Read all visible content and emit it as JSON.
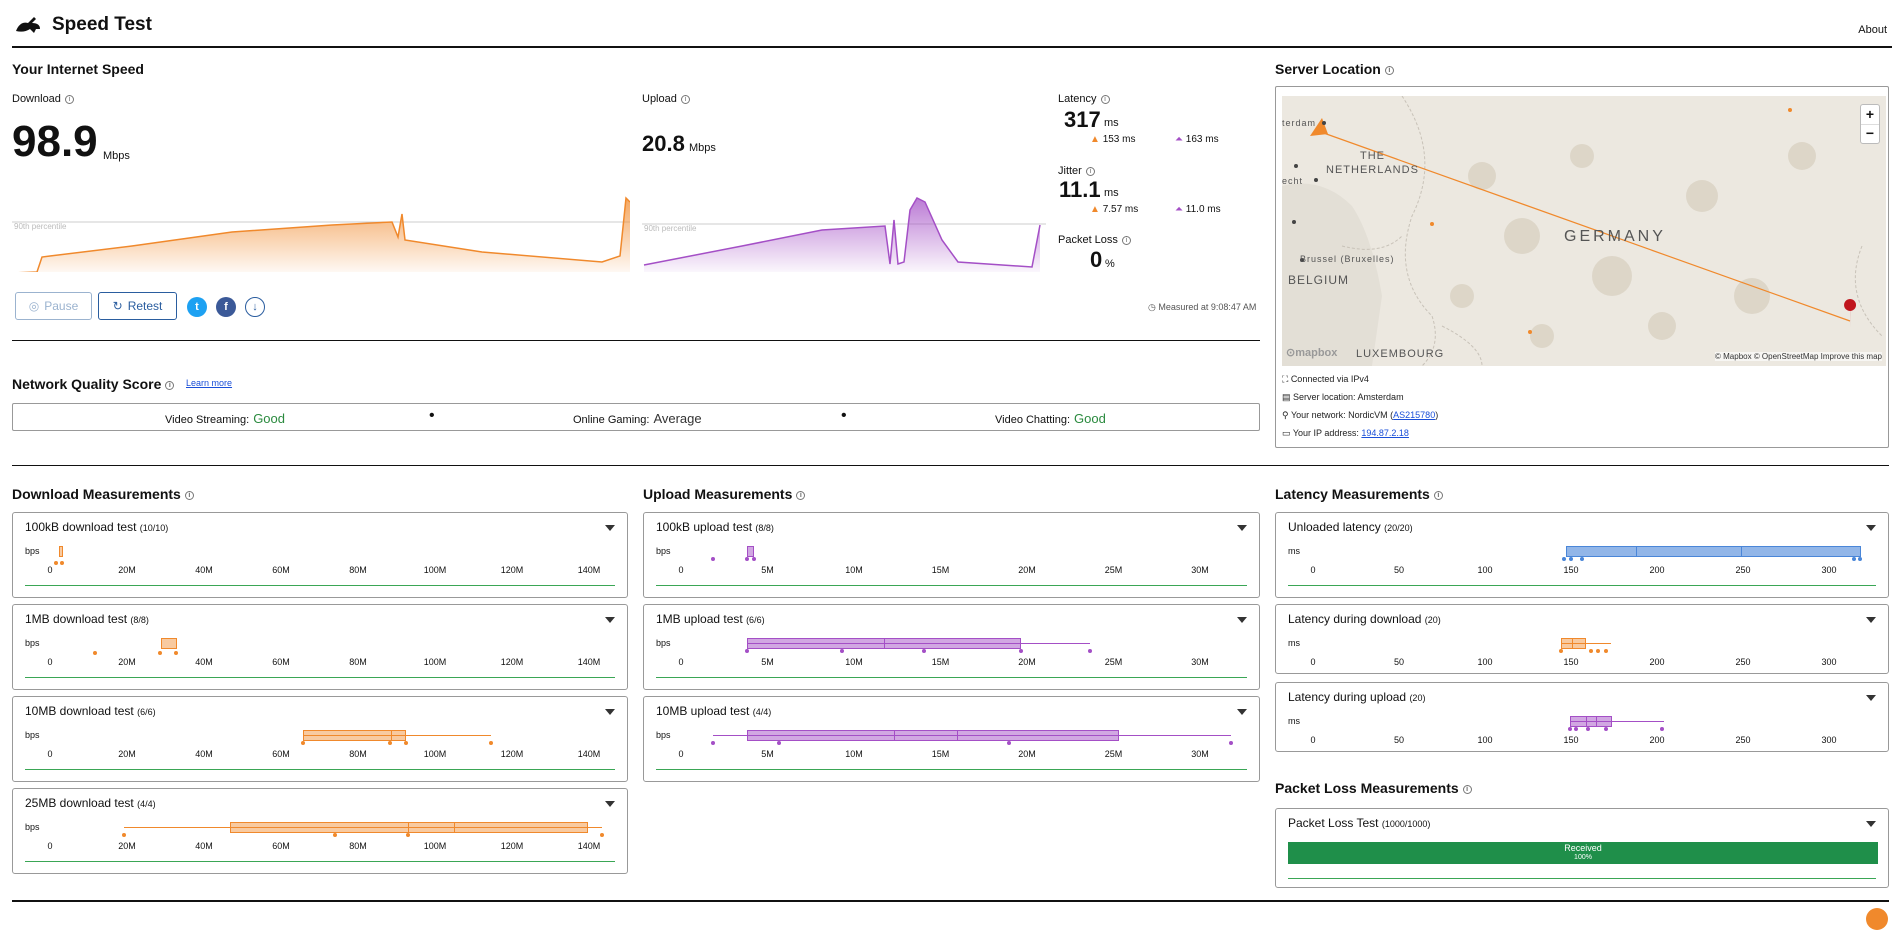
{
  "header": {
    "title": "Speed Test",
    "about": "About"
  },
  "speed": {
    "section_title": "Your Internet Speed",
    "download_label": "Download",
    "download_value": "98.9",
    "download_unit": "Mbps",
    "upload_label": "Upload",
    "upload_value": "20.8",
    "upload_unit": "Mbps",
    "percentile_label": "90th percentile",
    "latency_label": "Latency",
    "latency_value": "317",
    "latency_unit": "ms",
    "latency_down": "153 ms",
    "latency_up": "163 ms",
    "jitter_label": "Jitter",
    "jitter_value": "11.1",
    "jitter_unit": "ms",
    "jitter_down": "7.57 ms",
    "jitter_up": "11.0 ms",
    "packet_loss_label": "Packet Loss",
    "packet_loss_value": "0",
    "packet_loss_unit": "%",
    "measured_at": "Measured at 9:08:47 AM",
    "pause_label": "Pause",
    "retest_label": "Retest"
  },
  "quality": {
    "title": "Network Quality Score",
    "learn_more": "Learn more",
    "items": [
      {
        "label": "Video Streaming:",
        "value": "Good"
      },
      {
        "label": "Online Gaming:",
        "value": "Average"
      },
      {
        "label": "Video Chatting:",
        "value": "Good"
      }
    ]
  },
  "server": {
    "title": "Server Location",
    "map_labels": {
      "netherlands1": "THE",
      "netherlands2": "NETHERLANDS",
      "germany": "GERMANY",
      "belgium": "BELGIUM",
      "luxembourg": "LUXEMBOURG",
      "brussels": "Brussel (Bruxelles)",
      "amsterdam": "terdam",
      "utrecht": "echt",
      "mapbox": "mapbox",
      "credits": "© Mapbox © OpenStreetMap  Improve this map"
    },
    "zoom_in": "+",
    "zoom_out": "−",
    "connected": "Connected via IPv4",
    "location": "Server location: Amsterdam",
    "network_prefix": "Your network: NordicVM (",
    "network_as": "AS215780",
    "network_suffix": ")",
    "ip_prefix": "Your IP address: ",
    "ip": "194.87.2.18"
  },
  "download_measurements": {
    "title": "Download Measurements",
    "unit": "bps",
    "ticks": [
      "0",
      "20M",
      "40M",
      "60M",
      "80M",
      "100M",
      "120M",
      "140M"
    ],
    "tests": [
      {
        "name": "100kB download test",
        "count": "(10/10)"
      },
      {
        "name": "1MB download test",
        "count": "(8/8)"
      },
      {
        "name": "10MB download test",
        "count": "(6/6)"
      },
      {
        "name": "25MB download test",
        "count": "(4/4)"
      }
    ]
  },
  "upload_measurements": {
    "title": "Upload Measurements",
    "unit": "bps",
    "ticks": [
      "0",
      "5M",
      "10M",
      "15M",
      "20M",
      "25M",
      "30M"
    ],
    "tests": [
      {
        "name": "100kB upload test",
        "count": "(8/8)"
      },
      {
        "name": "1MB upload test",
        "count": "(6/6)"
      },
      {
        "name": "10MB upload test",
        "count": "(4/4)"
      }
    ]
  },
  "latency_measurements": {
    "title": "Latency Measurements",
    "unit": "ms",
    "ticks": [
      "0",
      "50",
      "100",
      "150",
      "200",
      "250",
      "300"
    ],
    "tests": [
      {
        "name": "Unloaded latency",
        "count": "(20/20)"
      },
      {
        "name": "Latency during download",
        "count": "(20)"
      },
      {
        "name": "Latency during upload",
        "count": "(20)"
      }
    ]
  },
  "packet_loss": {
    "title": "Packet Loss Measurements",
    "test_name": "Packet Loss Test",
    "count": "(1000/1000)",
    "received_label": "Received",
    "received_pct": "100%"
  },
  "colors": {
    "download": "#f0892c",
    "upload": "#a44fc6",
    "latency": "#4a86d8",
    "good": "#2a8a3e",
    "link": "#2a5d9f"
  }
}
